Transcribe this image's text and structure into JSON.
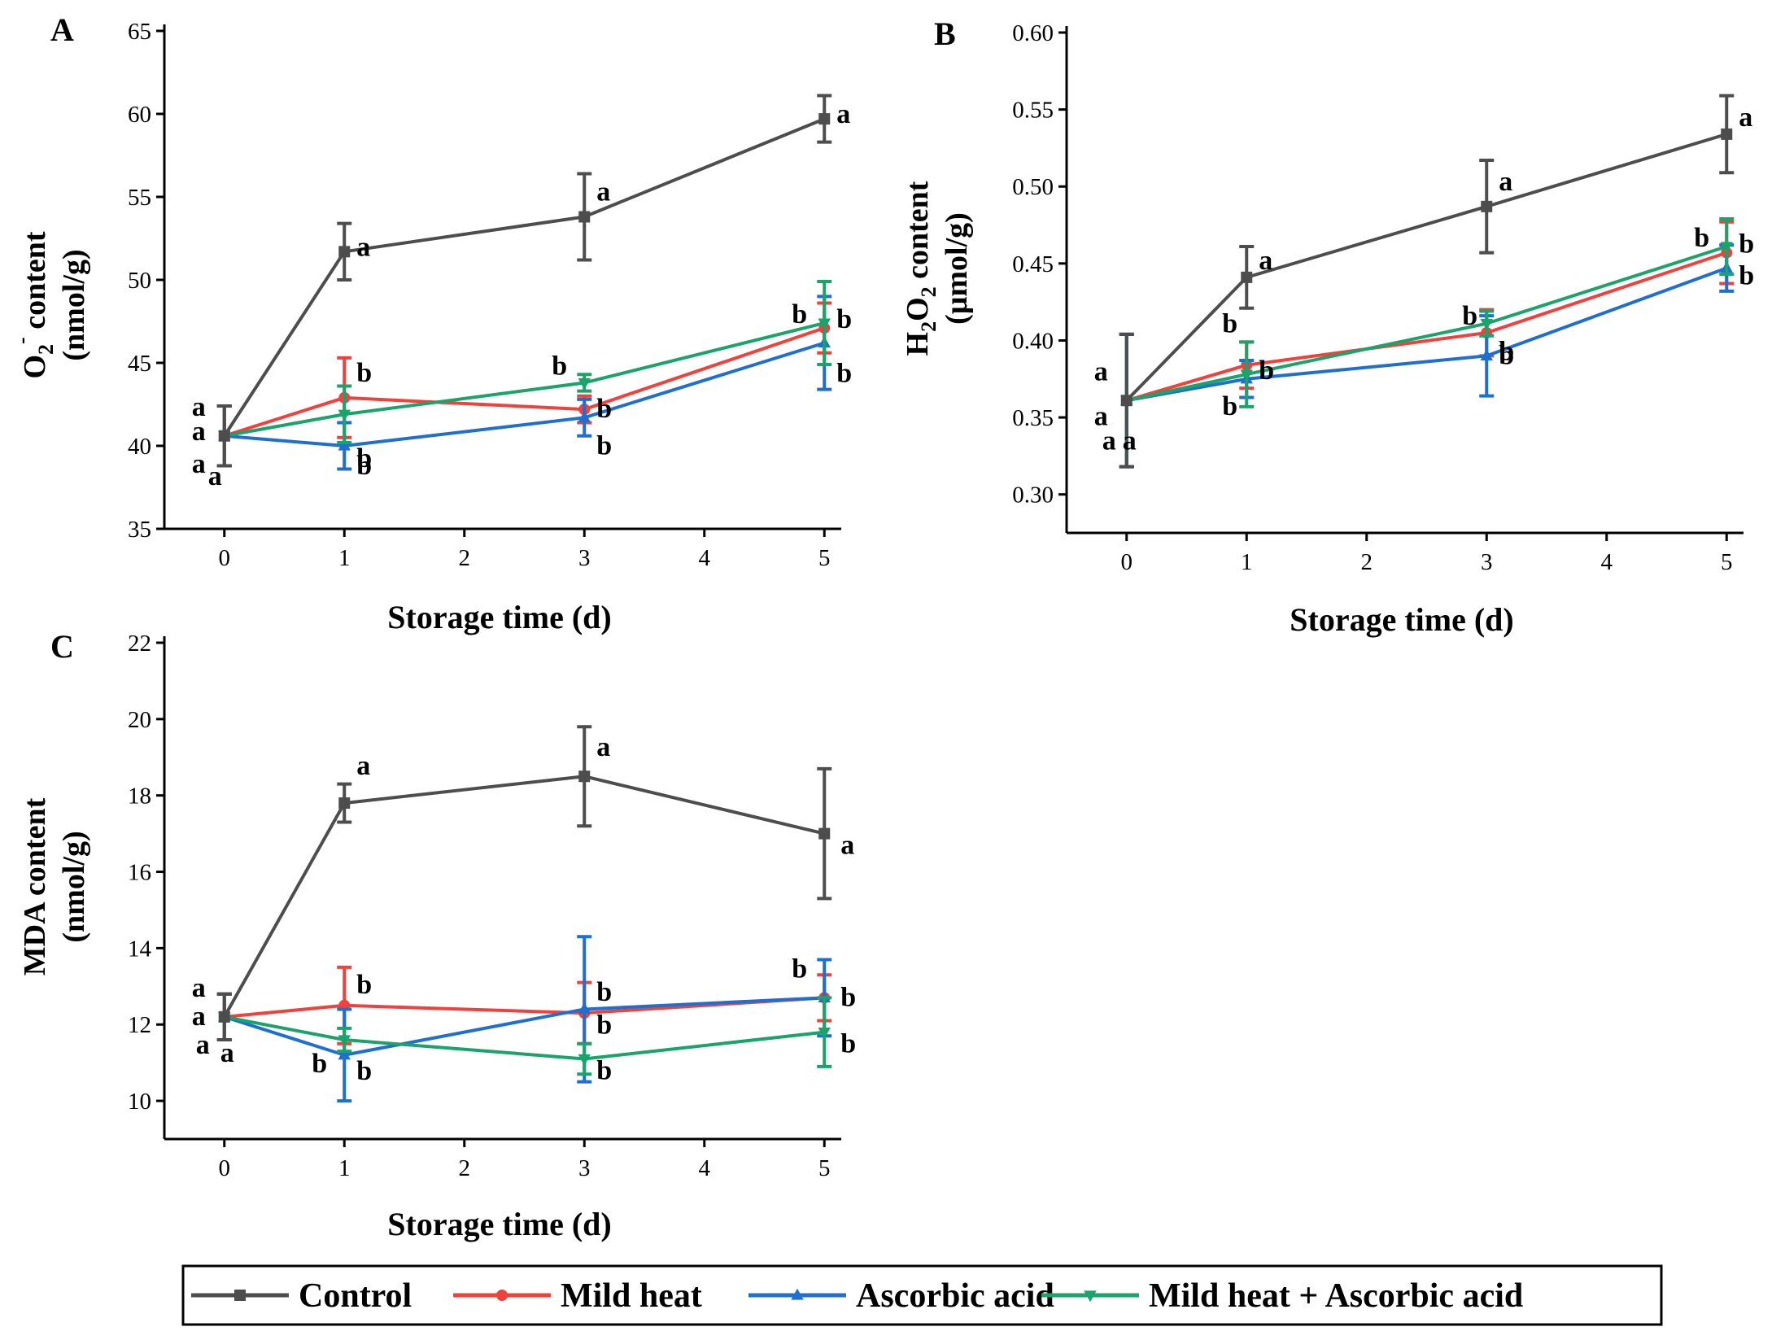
{
  "colors": {
    "Control": "#4d4d4d",
    "Mild heat": "#f0413c",
    "Ascorbic acid": "#1f6fd0",
    "Mild heat + Ascorbic acid": "#1aa36a"
  },
  "legend": {
    "entries": [
      "Control",
      "Mild heat",
      "Ascorbic acid",
      "Mild heat + Ascorbic acid"
    ]
  },
  "chart_data": [
    {
      "panel": "A",
      "type": "line",
      "xlabel": "Storage time (d)",
      "ylabel_line1": "O2- content",
      "ylabel_line2": "(nmol/g)",
      "x": [
        0,
        1,
        3,
        5
      ],
      "xticks": [
        0,
        1,
        2,
        3,
        4,
        5
      ],
      "xlim": [
        -0.5,
        5.1
      ],
      "ylim": [
        35,
        65
      ],
      "yticks": [
        35,
        40,
        45,
        50,
        55,
        60,
        65
      ],
      "series": [
        {
          "name": "Control",
          "values": [
            40.6,
            51.7,
            53.8,
            59.7
          ],
          "errors": [
            1.8,
            1.7,
            2.6,
            1.4
          ],
          "marker": "square",
          "letters": [
            "a",
            "a",
            "a",
            "a"
          ]
        },
        {
          "name": "Mild heat",
          "values": [
            40.6,
            42.9,
            42.2,
            47.1
          ],
          "errors": [
            1.8,
            2.4,
            0.8,
            1.5
          ],
          "marker": "circle",
          "letters": [
            "a",
            "b",
            "b",
            "b"
          ]
        },
        {
          "name": "Ascorbic acid",
          "values": [
            40.6,
            40.0,
            41.7,
            46.2
          ],
          "errors": [
            1.8,
            1.4,
            1.1,
            2.8
          ],
          "marker": "triangle-up",
          "letters": [
            "a",
            "b",
            "b",
            "b"
          ]
        },
        {
          "name": "Mild heat + Ascorbic acid",
          "values": [
            40.6,
            41.9,
            43.8,
            47.4
          ],
          "errors": [
            1.8,
            1.7,
            0.5,
            2.5
          ],
          "marker": "triangle-down",
          "letters": [
            "a",
            "b",
            "b",
            "b"
          ]
        }
      ]
    },
    {
      "panel": "B",
      "type": "line",
      "xlabel": "Storage time (d)",
      "ylabel_line1": "H2O2 content",
      "ylabel_line2": "(μmol/g)",
      "x": [
        0,
        1,
        3,
        5
      ],
      "xticks": [
        0,
        1,
        2,
        3,
        4,
        5
      ],
      "xlim": [
        -0.5,
        5.1
      ],
      "ylim": [
        0.275,
        0.6
      ],
      "yticks": [
        0.3,
        0.35,
        0.4,
        0.45,
        0.5,
        0.55,
        0.6
      ],
      "series": [
        {
          "name": "Control",
          "values": [
            0.361,
            0.441,
            0.487,
            0.534
          ],
          "errors": [
            0.043,
            0.02,
            0.03,
            0.025
          ],
          "marker": "square",
          "letters": [
            "a",
            "a",
            "a",
            "a"
          ]
        },
        {
          "name": "Mild heat",
          "values": [
            0.361,
            0.384,
            0.405,
            0.457
          ],
          "errors": [
            0.043,
            0.015,
            0.015,
            0.02
          ],
          "marker": "circle",
          "letters": [
            "a",
            "b",
            "b",
            "b"
          ]
        },
        {
          "name": "Ascorbic acid",
          "values": [
            0.361,
            0.375,
            0.39,
            0.447
          ],
          "errors": [
            0.043,
            0.012,
            0.026,
            0.015
          ],
          "marker": "triangle-up",
          "letters": [
            "a",
            "b",
            "b",
            "b"
          ]
        },
        {
          "name": "Mild heat + Ascorbic acid",
          "values": [
            0.361,
            0.378,
            0.411,
            0.461
          ],
          "errors": [
            0.043,
            0.021,
            0.008,
            0.018
          ],
          "marker": "triangle-down",
          "letters": [
            "a",
            "b",
            "b",
            "b"
          ]
        }
      ]
    },
    {
      "panel": "C",
      "type": "line",
      "xlabel": "Storage time (d)",
      "ylabel_line1": "MDA content",
      "ylabel_line2": "(nmol/g)",
      "x": [
        0,
        1,
        3,
        5
      ],
      "xticks": [
        0,
        1,
        2,
        3,
        4,
        5
      ],
      "xlim": [
        -0.5,
        5.1
      ],
      "ylim": [
        9,
        22
      ],
      "yticks": [
        10,
        12,
        14,
        16,
        18,
        20,
        22
      ],
      "series": [
        {
          "name": "Control",
          "values": [
            12.2,
            17.8,
            18.5,
            17.0
          ],
          "errors": [
            0.6,
            0.5,
            1.3,
            1.7
          ],
          "marker": "square",
          "letters": [
            "a",
            "a",
            "a",
            "a"
          ]
        },
        {
          "name": "Mild heat",
          "values": [
            12.2,
            12.5,
            12.3,
            12.7
          ],
          "errors": [
            0.6,
            1.0,
            0.8,
            0.6
          ],
          "marker": "circle",
          "letters": [
            "a",
            "b",
            "b",
            "b"
          ]
        },
        {
          "name": "Ascorbic acid",
          "values": [
            12.2,
            11.2,
            12.4,
            12.7
          ],
          "errors": [
            0.6,
            1.2,
            1.9,
            1.0
          ],
          "marker": "triangle-up",
          "letters": [
            "a",
            "b",
            "b",
            "b"
          ]
        },
        {
          "name": "Mild heat + Ascorbic acid",
          "values": [
            12.2,
            11.6,
            11.1,
            11.8
          ],
          "errors": [
            0.6,
            0.3,
            0.4,
            0.9
          ],
          "marker": "triangle-down",
          "letters": [
            "a",
            "b",
            "b",
            "b"
          ]
        }
      ]
    }
  ]
}
